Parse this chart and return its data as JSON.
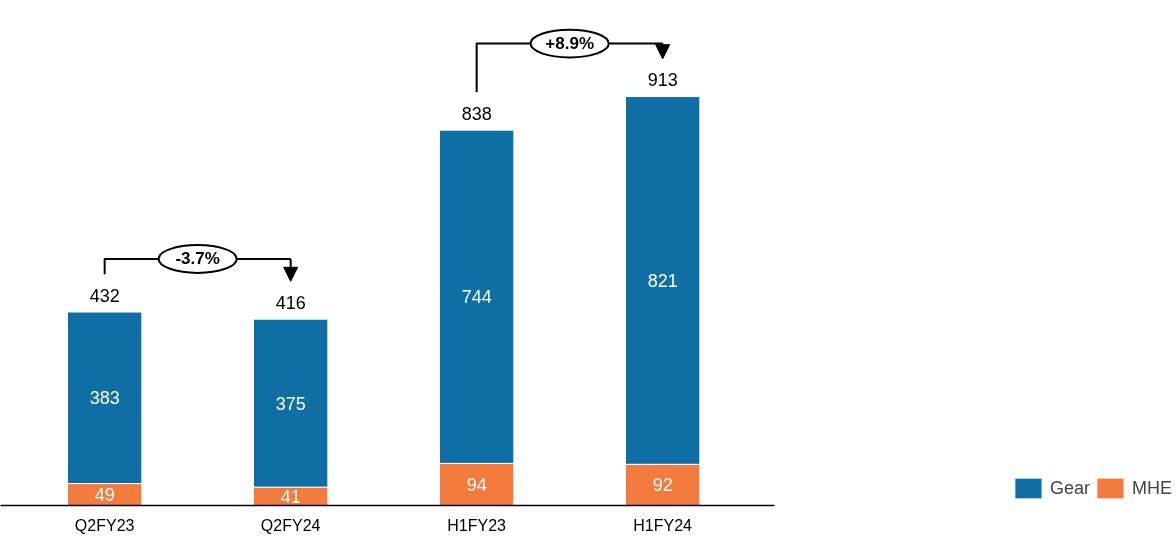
{
  "chart_data": {
    "type": "bar",
    "stacked": true,
    "categories": [
      "Q2FY23",
      "Q2FY24",
      "H1FY23",
      "H1FY24"
    ],
    "series": [
      {
        "name": "MHE",
        "color": "#f47b3e",
        "values": [
          49,
          41,
          94,
          92
        ]
      },
      {
        "name": "Gear",
        "color": "#0f6ea3",
        "values": [
          383,
          375,
          744,
          821
        ]
      }
    ],
    "totals": [
      "432",
      "416",
      "838",
      "913"
    ],
    "data_labels": true,
    "annotations": [
      "-3.7%",
      "+8.9%"
    ],
    "legend": "bottom right",
    "grid": false
  }
}
